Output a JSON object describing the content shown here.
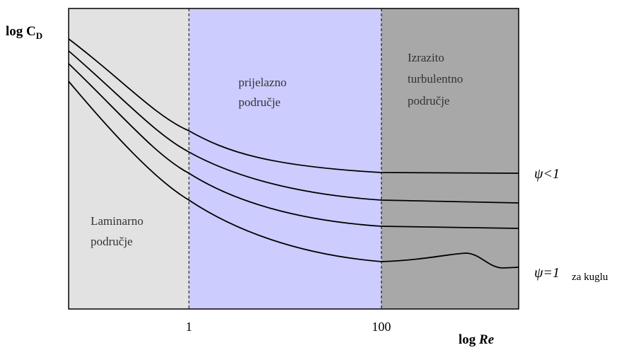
{
  "axes": {
    "y_label": {
      "text": "log C",
      "sub": "D"
    },
    "x_label": {
      "text": "log",
      "var": "Re"
    },
    "x_ticks": [
      "1",
      "100"
    ]
  },
  "regions": [
    {
      "lines": [
        "Laminarno",
        "područje"
      ]
    },
    {
      "lines": [
        "prijelazno",
        "područje"
      ]
    },
    {
      "lines": [
        "Izrazito",
        "turbulentno",
        "područje"
      ]
    }
  ],
  "curve_labels": {
    "top": "ψ<1",
    "bottom": "ψ=1",
    "bottom_note": "za kuglu"
  }
}
